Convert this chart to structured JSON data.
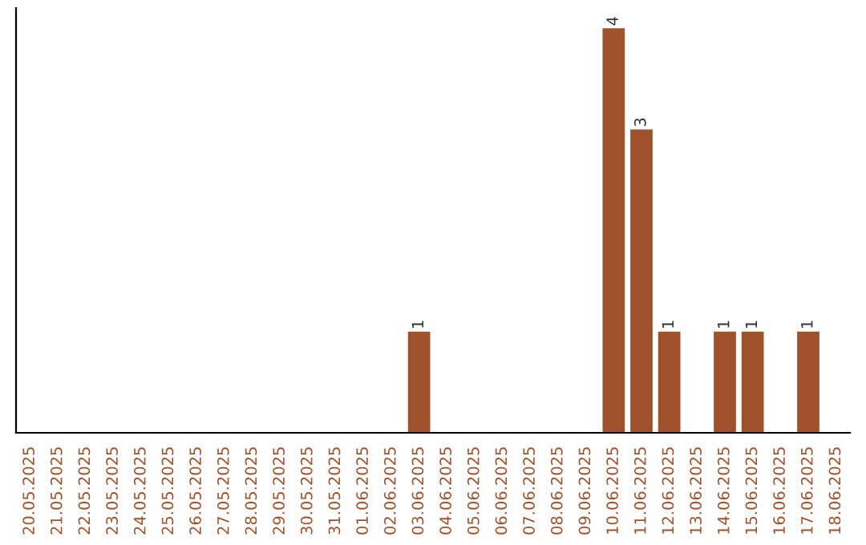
{
  "chart_data": {
    "type": "bar",
    "categories": [
      "20.05.2025",
      "21.05.2025",
      "22.05.2025",
      "23.05.2025",
      "24.05.2025",
      "25.05.2025",
      "26.05.2025",
      "27.05.2025",
      "28.05.2025",
      "29.05.2025",
      "30.05.2025",
      "31.05.2025",
      "01.06.2025",
      "02.06.2025",
      "03.06.2025",
      "04.06.2025",
      "05.06.2025",
      "06.06.2025",
      "07.06.2025",
      "08.06.2025",
      "09.06.2025",
      "10.06.2025",
      "11.06.2025",
      "12.06.2025",
      "13.06.2025",
      "14.06.2025",
      "15.06.2025",
      "16.06.2025",
      "17.06.2025",
      "18.06.2025"
    ],
    "values": [
      null,
      null,
      null,
      null,
      null,
      null,
      null,
      null,
      null,
      null,
      null,
      null,
      null,
      null,
      1,
      null,
      null,
      null,
      null,
      null,
      null,
      4,
      3,
      1,
      null,
      1,
      1,
      null,
      1,
      null
    ],
    "data_labels": true,
    "color": "#a0522d",
    "tick_labels": "x",
    "grid": false
  }
}
